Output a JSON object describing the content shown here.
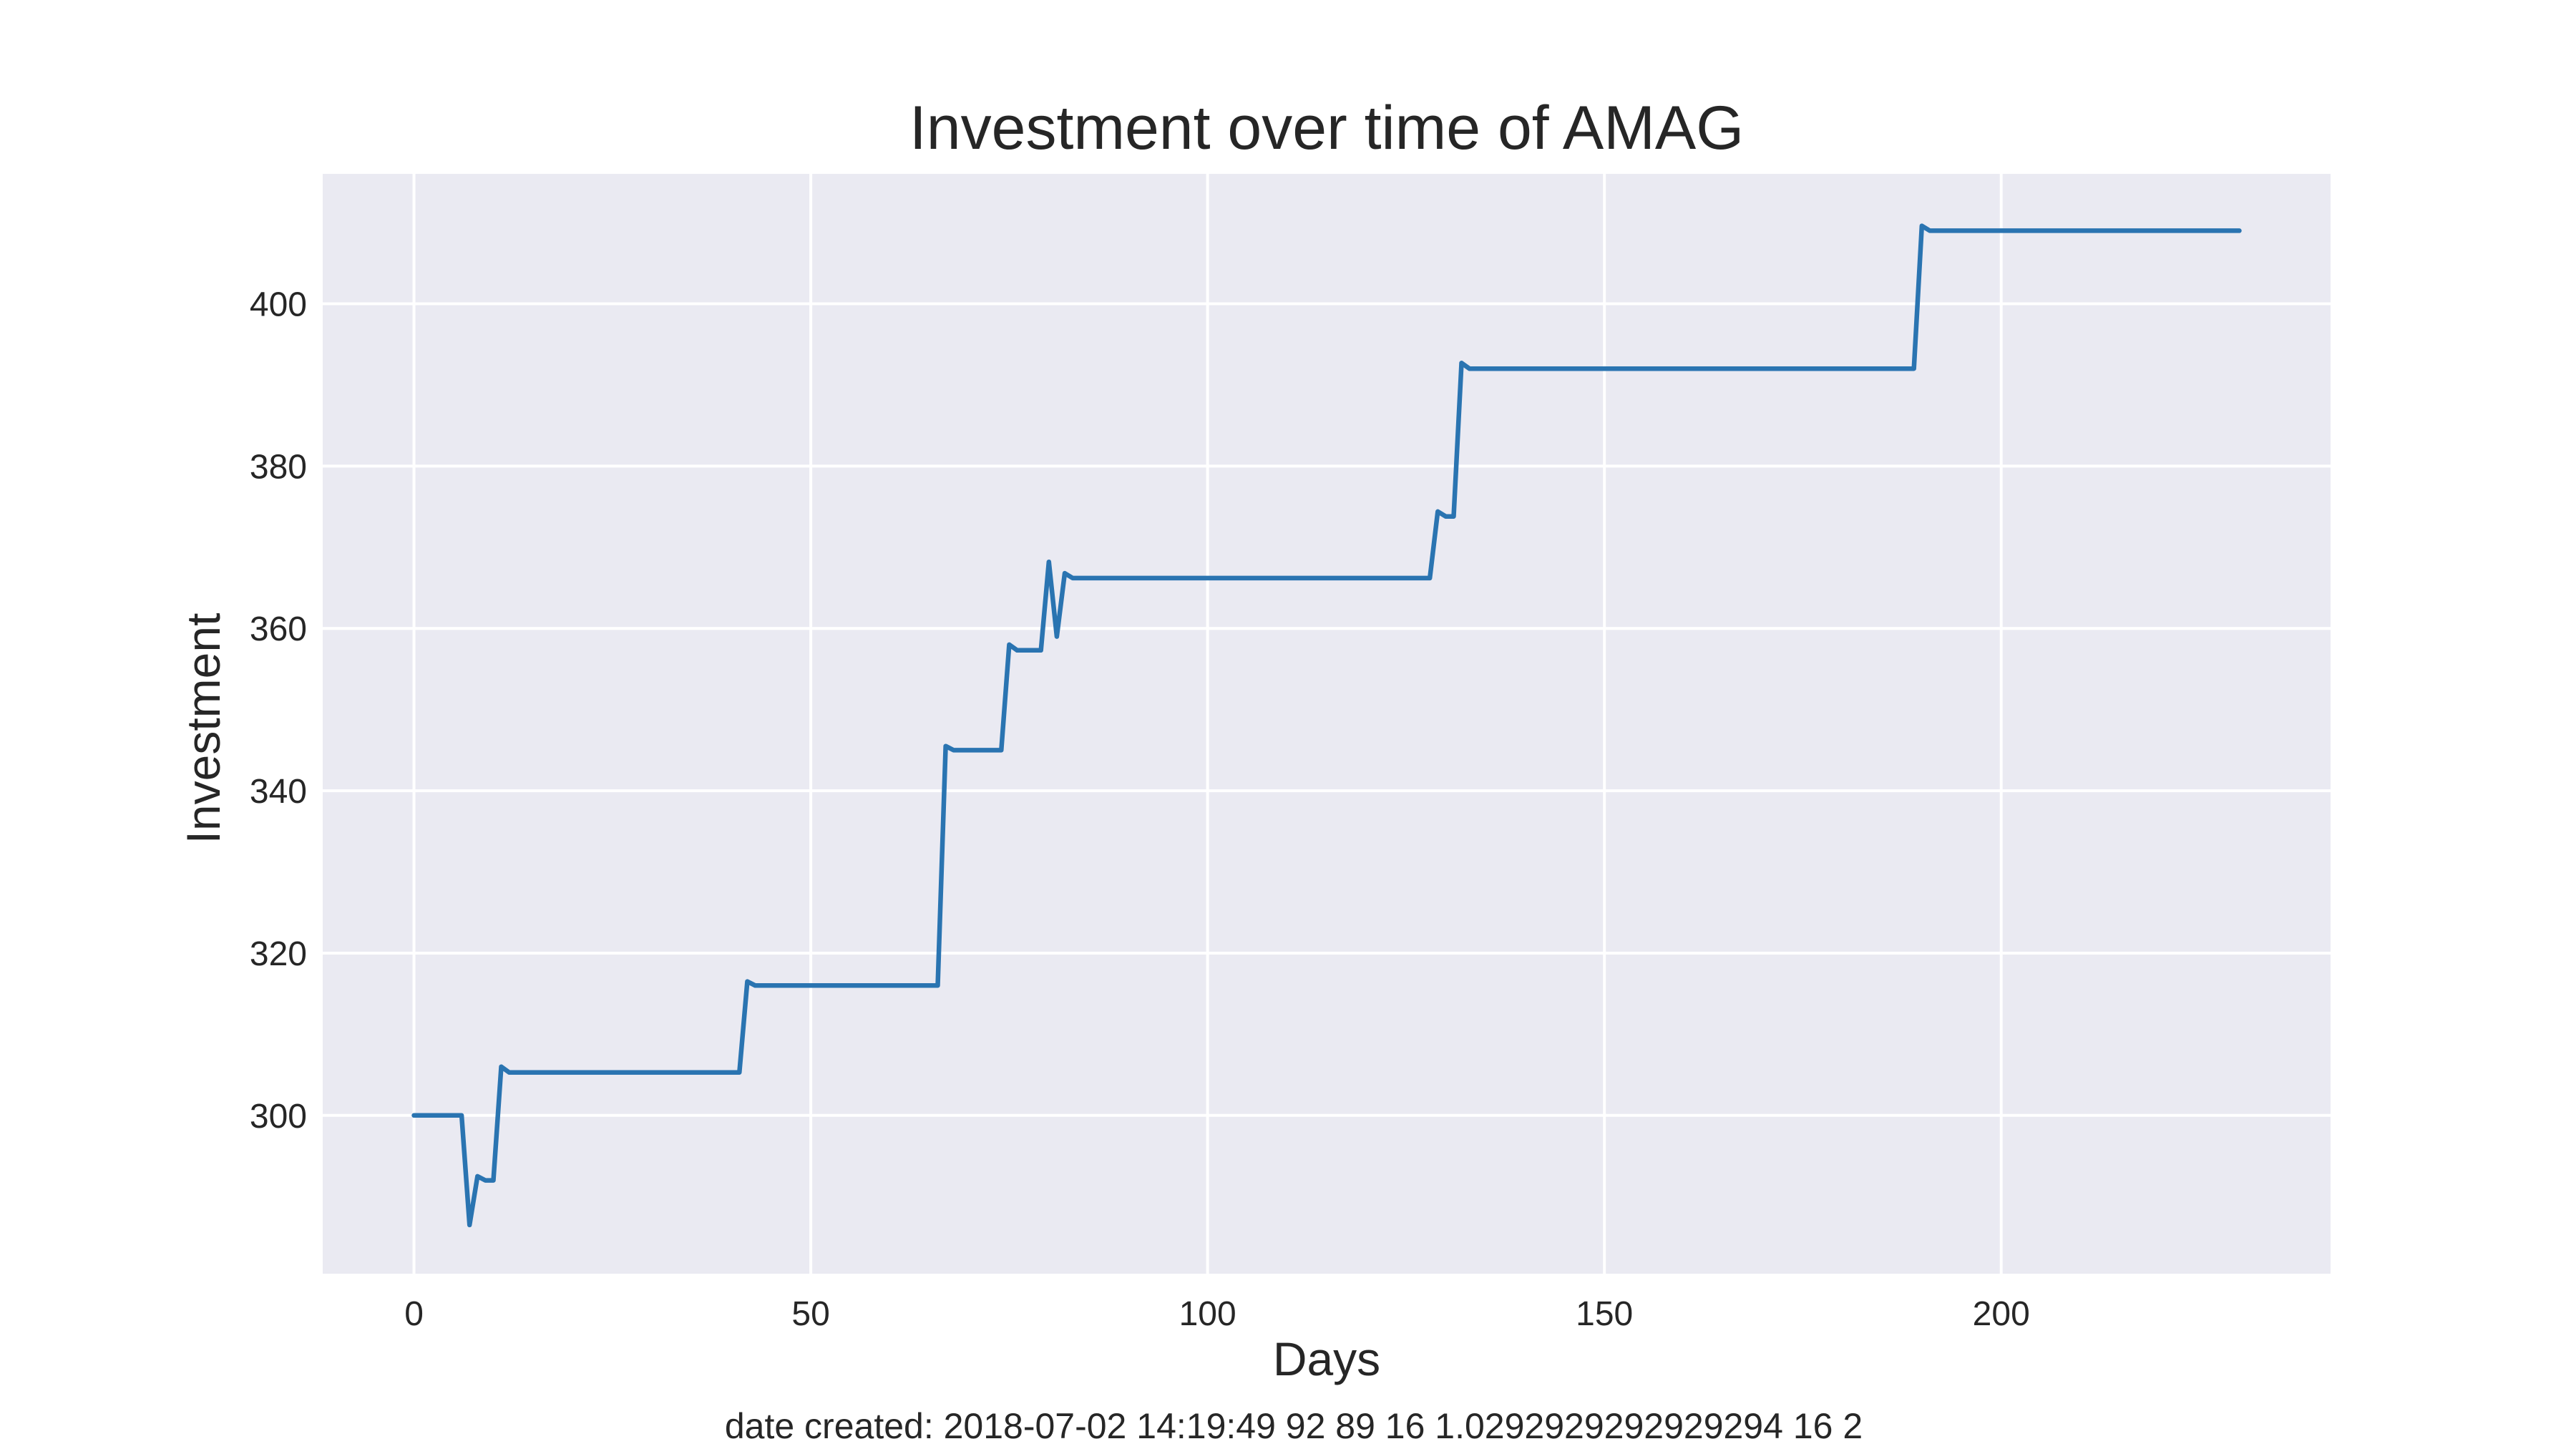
{
  "chart_data": {
    "type": "line",
    "title": "Investment over time of AMAG",
    "xlabel": "Days",
    "ylabel": "Investment",
    "xlim": [
      -11.5,
      241.5
    ],
    "ylim": [
      280.5,
      416
    ],
    "x_ticks": [
      0,
      50,
      100,
      150,
      200
    ],
    "y_ticks": [
      300,
      320,
      340,
      360,
      380,
      400
    ],
    "grid": true,
    "series": [
      {
        "color": "#2a74b1",
        "points": [
          [
            0,
            300
          ],
          [
            6,
            300
          ],
          [
            7,
            286.5
          ],
          [
            8,
            292.5
          ],
          [
            9,
            292
          ],
          [
            10,
            292
          ],
          [
            11,
            306
          ],
          [
            12,
            305.3
          ],
          [
            41,
            305.3
          ],
          [
            42,
            316.5
          ],
          [
            43,
            316
          ],
          [
            66,
            316
          ],
          [
            67,
            345.5
          ],
          [
            68,
            345
          ],
          [
            74,
            345
          ],
          [
            75,
            358
          ],
          [
            76,
            357.3
          ],
          [
            79,
            357.3
          ],
          [
            80,
            368.2
          ],
          [
            81,
            359
          ],
          [
            82,
            366.8
          ],
          [
            83,
            366.2
          ],
          [
            128,
            366.2
          ],
          [
            129,
            374.4
          ],
          [
            130,
            373.8
          ],
          [
            131,
            373.8
          ],
          [
            132,
            392.7
          ],
          [
            133,
            392
          ],
          [
            189,
            392
          ],
          [
            190,
            409.6
          ],
          [
            191,
            409
          ],
          [
            230,
            409
          ]
        ]
      }
    ],
    "footer": "date created: 2018-07-02 14:19:49 92 89 16 1.0292929292929294 16 2"
  }
}
